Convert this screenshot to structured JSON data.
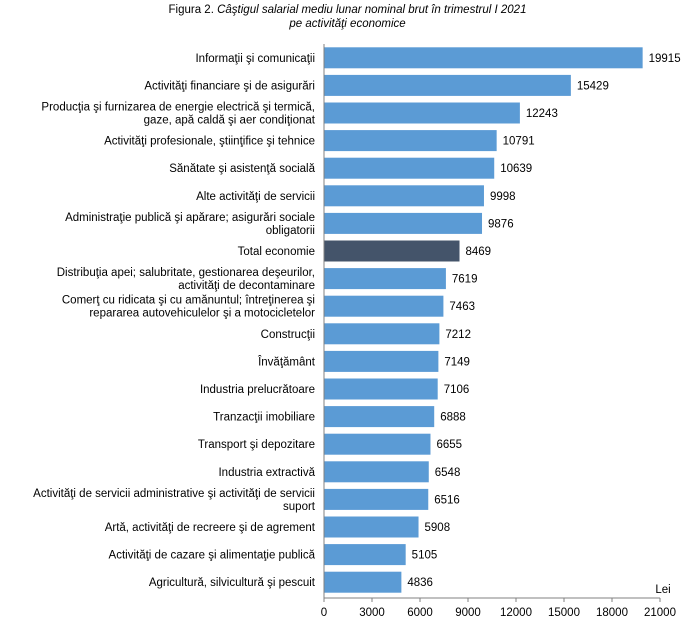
{
  "title": {
    "prefix": "Figura 2. ",
    "italic": "Câştigul salarial mediu lunar nominal brut în trimestrul I 2021",
    "line2": "pe activităţi economice"
  },
  "chart_data": {
    "type": "bar",
    "orientation": "horizontal",
    "categories": [
      [
        "Informaţii şi comunicaţii"
      ],
      [
        "Activităţi  financiare şi de asigurări"
      ],
      [
        "Producţia şi furnizarea de energie electrică şi termică,",
        "gaze,  apă caldă şi aer condiţionat"
      ],
      [
        "Activităţi  profesionale, ştiinţifice şi tehnice"
      ],
      [
        "Sănătate şi asistenţă socială"
      ],
      [
        "Alte  activităţi de servicii"
      ],
      [
        "Administraţie publică şi apărare; asigurări sociale",
        "obligatorii"
      ],
      [
        "Total economie"
      ],
      [
        "Distribuţia apei; salubritate, gestionarea deşeurilor,",
        "activităţi  de decontaminare"
      ],
      [
        "Comerţ cu ridicata şi cu amănuntul; întreţinerea şi",
        "repararea autovehiculelor şi a motocicletelor"
      ],
      [
        "Construcţii"
      ],
      [
        "Învăţământ"
      ],
      [
        "Industria prelucrătoare"
      ],
      [
        "Tranzacţii imobiliare"
      ],
      [
        "Transport şi depozitare"
      ],
      [
        "Industria extractivă"
      ],
      [
        "Activităţi  de servicii administrative şi activităţi de servicii",
        "suport"
      ],
      [
        "Artă,  activităţi de recreere şi de agrement"
      ],
      [
        "Activităţi  de cazare şi alimentaţie publică"
      ],
      [
        "Agricultură, silvicultură şi pescuit"
      ]
    ],
    "values": [
      19915,
      15429,
      12243,
      10791,
      10639,
      9998,
      9876,
      8469,
      7619,
      7463,
      7212,
      7149,
      7106,
      6888,
      6655,
      6548,
      6516,
      5908,
      5105,
      4836
    ],
    "highlight_index": 7,
    "bar_color": "#5b9bd5",
    "highlight_color": "#44546a",
    "xlim": [
      0,
      21000
    ],
    "xticks": [
      "0",
      "3000",
      "6000",
      "9000",
      "12000",
      "15000",
      "18000",
      "21000"
    ],
    "unit_label": "Lei",
    "grid": false,
    "legend": "none"
  }
}
